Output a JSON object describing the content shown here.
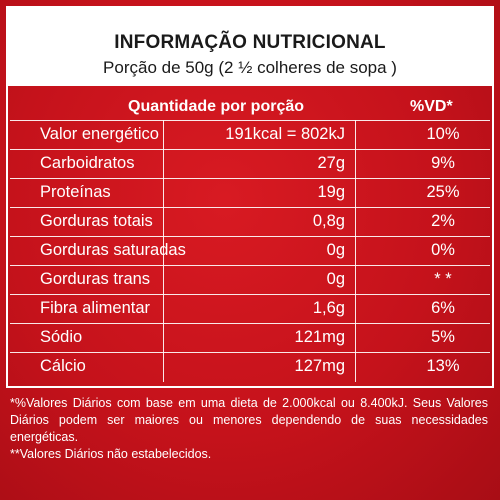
{
  "header": {
    "title": "INFORMAÇÃO NUTRICIONAL",
    "subtitle": "Porção de 50g (2 ½ colheres de sopa )"
  },
  "columns": {
    "amount": "Quantidade por porção",
    "vd": "%VD*"
  },
  "rows": [
    {
      "name": "Valor energético",
      "amount": "191kcal = 802kJ",
      "vd": "10%"
    },
    {
      "name": "Carboidratos",
      "amount": "27g",
      "vd": "9%"
    },
    {
      "name": "Proteínas",
      "amount": "19g",
      "vd": "25%"
    },
    {
      "name": "Gorduras totais",
      "amount": "0,8g",
      "vd": "2%"
    },
    {
      "name": "Gorduras saturadas",
      "amount": "0g",
      "vd": "0%"
    },
    {
      "name": "Gorduras trans",
      "amount": "0g",
      "vd": "* *"
    },
    {
      "name": "Fibra alimentar",
      "amount": "1,6g",
      "vd": "6%"
    },
    {
      "name": "Sódio",
      "amount": "121mg",
      "vd": "5%"
    },
    {
      "name": "Cálcio",
      "amount": "127mg",
      "vd": "13%"
    }
  ],
  "footnotes": {
    "note1": "*%Valores Diários com base em uma dieta de 2.000kcal ou 8.400kJ. Seus Valores Diários podem ser maiores ou menores dependendo de suas necessidades energéticas.",
    "note2": "**Valores Diários não estabelecidos."
  }
}
